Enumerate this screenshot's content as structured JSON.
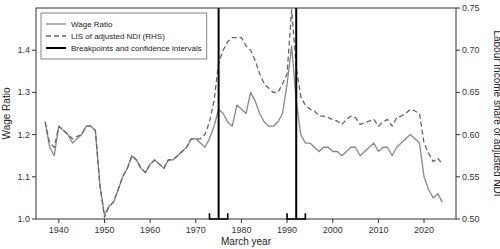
{
  "chart_data": {
    "type": "line",
    "x_label": "March year",
    "y_label": "Wage Ratio",
    "y2_label": "Labour Income share of adjusted NDI",
    "x": [
      1937,
      1938,
      1939,
      1940,
      1941,
      1942,
      1943,
      1944,
      1945,
      1946,
      1947,
      1948,
      1949,
      1950,
      1951,
      1952,
      1953,
      1954,
      1955,
      1956,
      1957,
      1958,
      1959,
      1960,
      1961,
      1962,
      1963,
      1964,
      1965,
      1966,
      1967,
      1968,
      1969,
      1970,
      1971,
      1972,
      1973,
      1974,
      1975,
      1976,
      1977,
      1978,
      1979,
      1980,
      1981,
      1982,
      1983,
      1984,
      1985,
      1986,
      1987,
      1988,
      1989,
      1990,
      1991,
      1992,
      1993,
      1994,
      1995,
      1996,
      1997,
      1998,
      1999,
      2000,
      2001,
      2002,
      2003,
      2004,
      2005,
      2006,
      2007,
      2008,
      2009,
      2010,
      2011,
      2012,
      2013,
      2014,
      2015,
      2016,
      2017,
      2018,
      2019,
      2020,
      2021,
      2022,
      2023,
      2024
    ],
    "series": [
      {
        "name": "Wage Ratio",
        "color": "#888888",
        "line_style": "solid",
        "values": [
          1.23,
          1.17,
          1.15,
          1.22,
          1.21,
          1.2,
          1.18,
          1.19,
          1.2,
          1.22,
          1.22,
          1.21,
          1.08,
          1.01,
          1.03,
          1.04,
          1.07,
          1.1,
          1.12,
          1.15,
          1.14,
          1.12,
          1.11,
          1.13,
          1.14,
          1.13,
          1.12,
          1.14,
          1.14,
          1.15,
          1.16,
          1.17,
          1.19,
          1.19,
          1.18,
          1.17,
          1.19,
          1.22,
          1.26,
          1.25,
          1.23,
          1.22,
          1.27,
          1.26,
          1.25,
          1.3,
          1.28,
          1.25,
          1.23,
          1.22,
          1.22,
          1.23,
          1.25,
          1.32,
          1.41,
          1.28,
          1.2,
          1.18,
          1.18,
          1.17,
          1.16,
          1.17,
          1.17,
          1.16,
          1.16,
          1.15,
          1.16,
          1.17,
          1.17,
          1.15,
          1.16,
          1.17,
          1.18,
          1.16,
          1.17,
          1.17,
          1.15,
          1.17,
          1.18,
          1.19,
          1.2,
          1.19,
          1.18,
          1.1,
          1.07,
          1.05,
          1.06,
          1.04
        ]
      },
      {
        "name": "LIS of adjusted NDI (RHS)",
        "color": "#666666",
        "line_style": "dashed",
        "axis": "y2",
        "values": [
          0.615,
          0.59,
          0.585,
          0.61,
          0.605,
          0.6,
          0.595,
          0.598,
          0.6,
          0.61,
          0.61,
          0.605,
          0.54,
          0.502,
          0.515,
          0.52,
          0.535,
          0.55,
          0.56,
          0.575,
          0.57,
          0.56,
          0.555,
          0.565,
          0.57,
          0.565,
          0.56,
          0.57,
          0.57,
          0.575,
          0.58,
          0.585,
          0.595,
          0.595,
          0.595,
          0.6,
          0.615,
          0.64,
          0.685,
          0.7,
          0.71,
          0.715,
          0.715,
          0.715,
          0.705,
          0.7,
          0.688,
          0.672,
          0.66,
          0.655,
          0.65,
          0.65,
          0.66,
          0.672,
          0.748,
          0.68,
          0.645,
          0.635,
          0.63,
          0.628,
          0.622,
          0.622,
          0.62,
          0.618,
          0.616,
          0.612,
          0.618,
          0.622,
          0.62,
          0.612,
          0.614,
          0.616,
          0.618,
          0.61,
          0.615,
          0.618,
          0.61,
          0.62,
          0.622,
          0.625,
          0.63,
          0.628,
          0.625,
          0.59,
          0.578,
          0.568,
          0.572,
          0.565
        ]
      }
    ],
    "breakpoints": {
      "name": "Breakpoints and confidence intervals",
      "color": "#000000",
      "values": [
        1975,
        1992
      ],
      "intervals": [
        [
          1973,
          1977
        ],
        [
          1990,
          1994
        ]
      ]
    },
    "xlim": [
      1935,
      2027
    ],
    "xticks": [
      1940,
      1950,
      1960,
      1970,
      1980,
      1990,
      2000,
      2010,
      2020
    ],
    "ylim": [
      1.0,
      1.5
    ],
    "yticks": [
      {
        "value": 1.0,
        "label": "1.0"
      },
      1.1,
      1.2,
      1.3,
      1.4
    ],
    "y2lim": [
      0.5,
      0.75
    ],
    "y2ticks": [
      {
        "value": 0.5,
        "label": "0.50"
      },
      0.55,
      {
        "value": 0.6,
        "label": "0.60"
      },
      0.65,
      {
        "value": 0.7,
        "label": "0.70"
      },
      0.75
    ],
    "grid": false,
    "legend": "top-left"
  }
}
